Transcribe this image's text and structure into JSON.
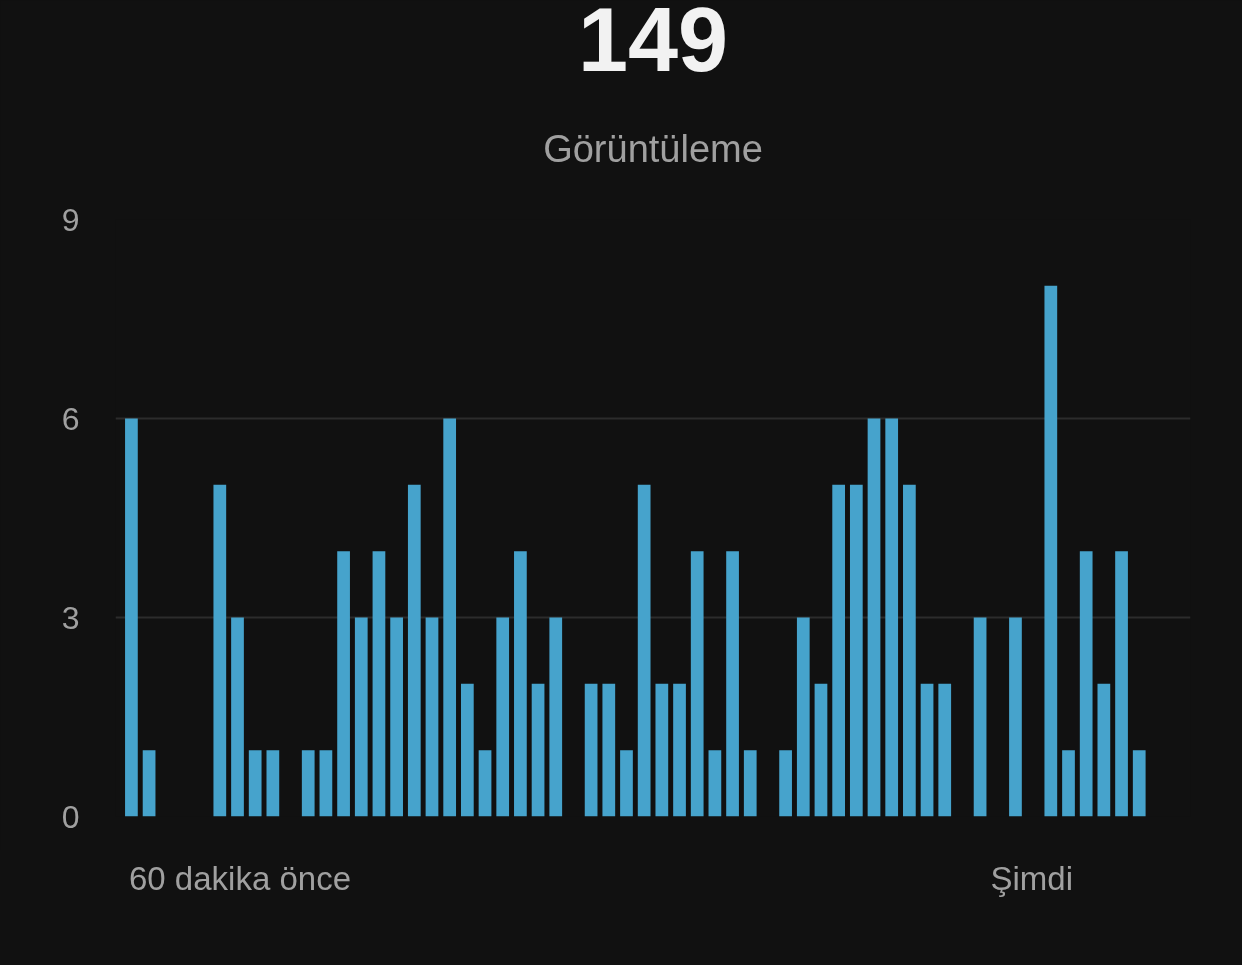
{
  "chart_data": {
    "type": "bar",
    "title": "149",
    "subtitle": "Görüntüleme",
    "categories": [
      null,
      null,
      null,
      null,
      null,
      null,
      null,
      null,
      null,
      null,
      null,
      null,
      null,
      null,
      null,
      null,
      null,
      null,
      null,
      null,
      null,
      null,
      null,
      null,
      null,
      null,
      null,
      null,
      null,
      null,
      null,
      null,
      null,
      null,
      null,
      null,
      null,
      null,
      null,
      null,
      null,
      null,
      null,
      null,
      null,
      null,
      null,
      null,
      null,
      null,
      null,
      null,
      null,
      null,
      null,
      null,
      null,
      null,
      null,
      null
    ],
    "values": [
      6,
      1,
      0,
      0,
      0,
      5,
      3,
      1,
      1,
      0,
      1,
      1,
      4,
      3,
      4,
      3,
      5,
      3,
      6,
      2,
      1,
      3,
      4,
      2,
      3,
      0,
      2,
      2,
      1,
      5,
      2,
      2,
      4,
      1,
      4,
      1,
      0,
      1,
      3,
      2,
      5,
      5,
      6,
      6,
      5,
      2,
      2,
      0,
      3,
      0,
      3,
      0,
      8,
      1,
      4,
      2,
      4,
      1,
      0,
      0
    ],
    "color": "#46a3cc",
    "ylim": [
      0,
      9
    ],
    "yticks": [
      0,
      3,
      6,
      9
    ],
    "grid": "y",
    "tick_labels": "y",
    "annotations": [
      "60 dakika önce",
      "Şimdi"
    ]
  }
}
